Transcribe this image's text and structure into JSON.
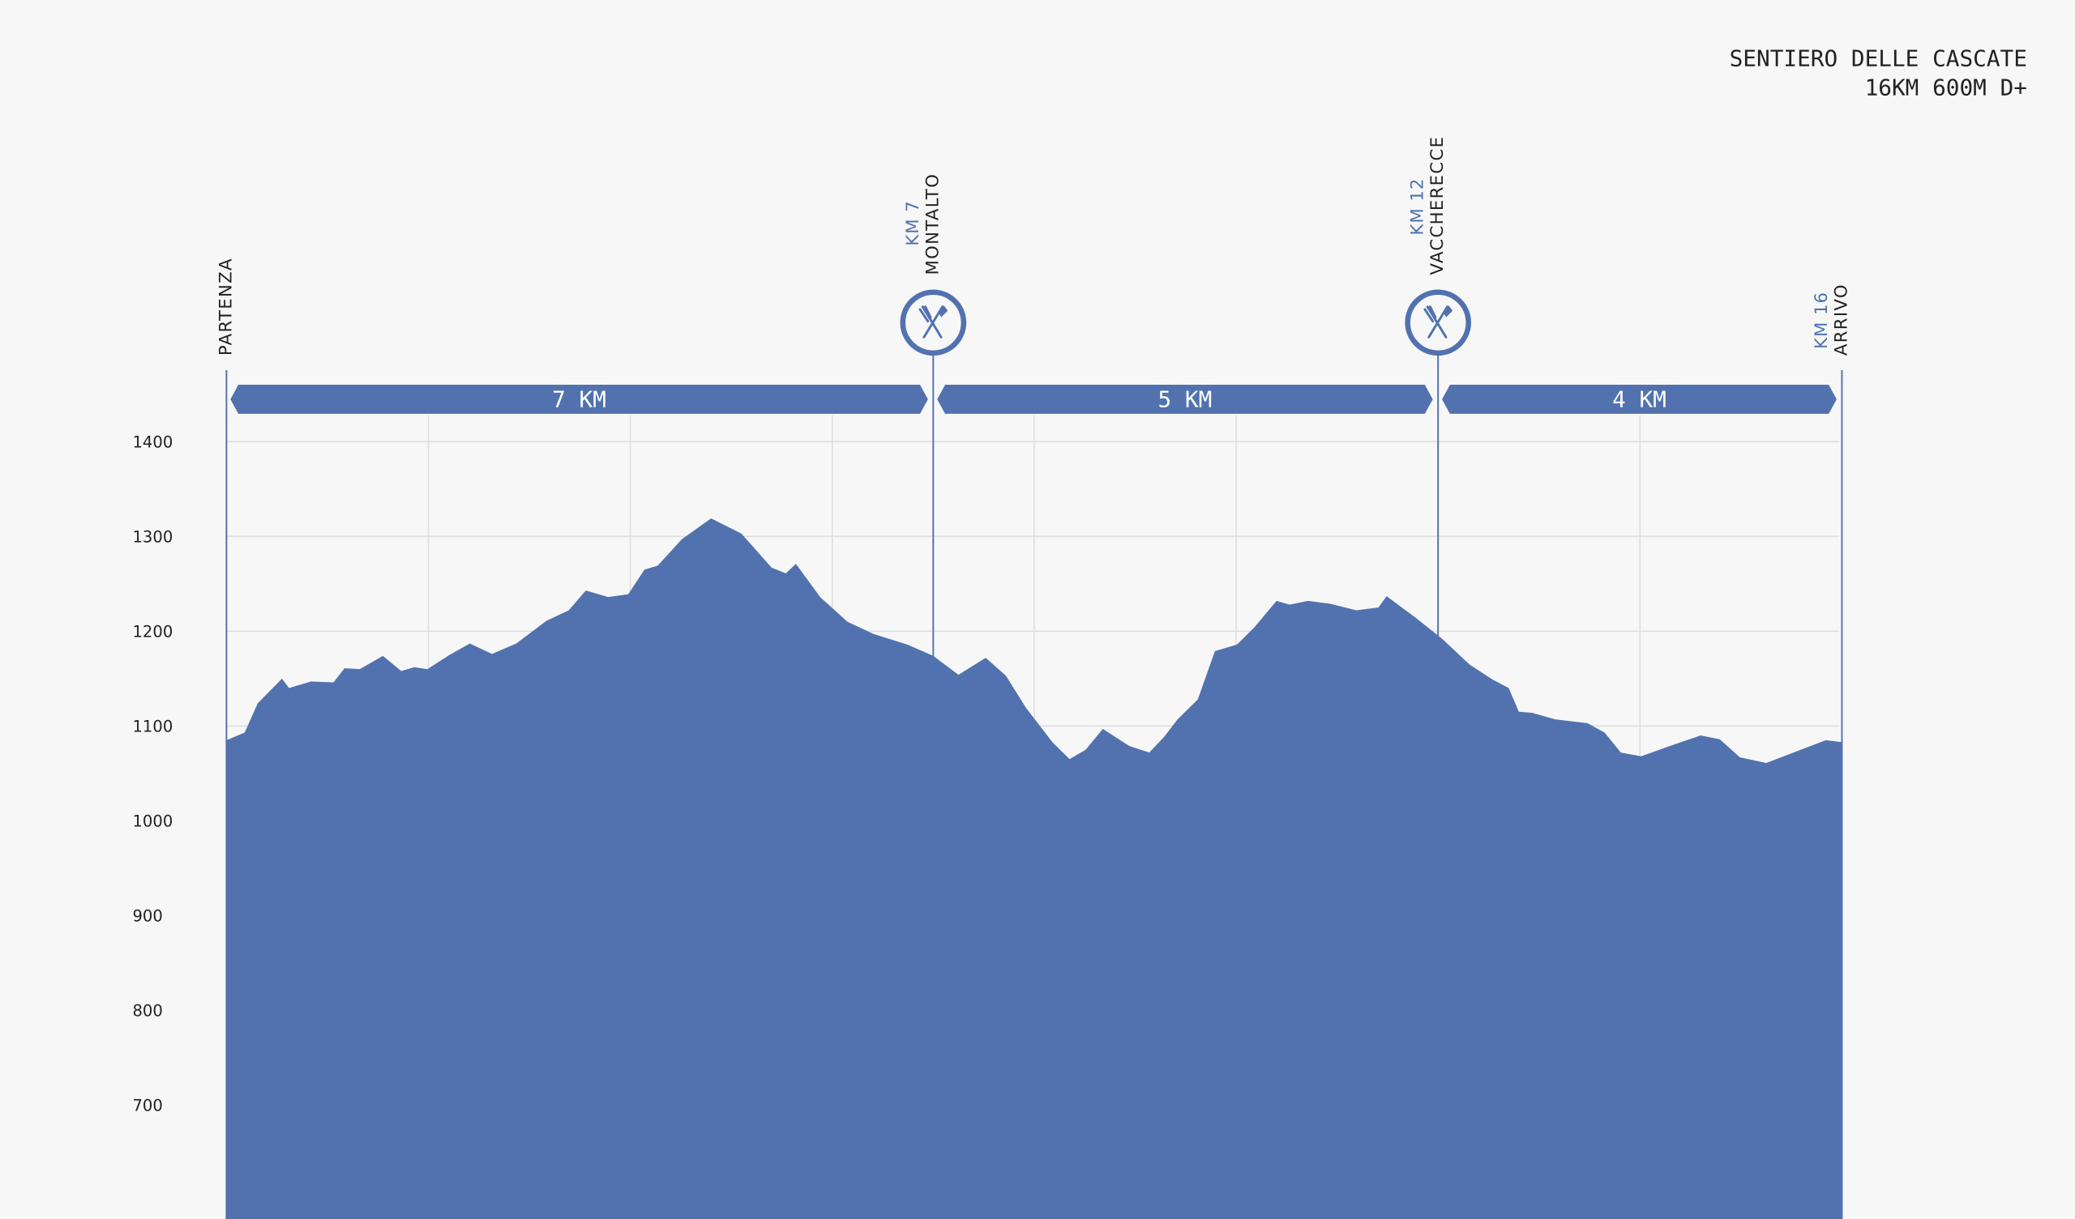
{
  "chart_data": {
    "type": "area",
    "title": "SENTIERO DELLE CASCATE",
    "subtitle": "16KM 600M D+",
    "color": "#5172ae",
    "xlim": [
      0,
      16
    ],
    "ylim": [
      580,
      1400
    ],
    "yticks": [
      700,
      800,
      900,
      1000,
      1100,
      1200,
      1300,
      1400
    ],
    "xticks": [
      2,
      4,
      6,
      8,
      10,
      12,
      14
    ],
    "grid": true,
    "x": [
      0,
      0.18,
      0.31,
      0.55,
      0.62,
      0.84,
      1.06,
      1.17,
      1.32,
      1.55,
      1.73,
      1.86,
      1.99,
      2.21,
      2.41,
      2.63,
      2.87,
      3.17,
      3.39,
      3.56,
      3.78,
      3.98,
      4.14,
      4.27,
      4.51,
      4.8,
      5.1,
      5.4,
      5.54,
      5.64,
      5.88,
      6.15,
      6.41,
      6.74,
      7.0,
      7.25,
      7.52,
      7.72,
      7.92,
      8.18,
      8.35,
      8.51,
      8.68,
      8.94,
      9.14,
      9.29,
      9.42,
      9.62,
      9.79,
      10.01,
      10.18,
      10.4,
      10.53,
      10.71,
      10.93,
      11.19,
      11.41,
      11.49,
      11.78,
      12.04,
      12.31,
      12.54,
      12.7,
      12.8,
      12.93,
      13.16,
      13.48,
      13.65,
      13.81,
      14.01,
      14.27,
      14.6,
      14.79,
      14.99,
      15.25,
      15.52,
      15.84,
      16
    ],
    "values": [
      1085,
      1093,
      1124,
      1150,
      1140,
      1147,
      1146,
      1161,
      1160,
      1174,
      1158,
      1162,
      1160,
      1175,
      1187,
      1176,
      1187,
      1211,
      1222,
      1243,
      1236,
      1239,
      1265,
      1269,
      1297,
      1319,
      1303,
      1267,
      1261,
      1271,
      1236,
      1210,
      1197,
      1186,
      1174,
      1154,
      1172,
      1153,
      1119,
      1083,
      1065,
      1075,
      1097,
      1079,
      1072,
      1089,
      1107,
      1128,
      1179,
      1186,
      1204,
      1232,
      1228,
      1232,
      1229,
      1222,
      1225,
      1237,
      1214,
      1192,
      1165,
      1149,
      1140,
      1115,
      1114,
      1107,
      1103,
      1093,
      1072,
      1068,
      1078,
      1090,
      1086,
      1067,
      1061,
      1072,
      1085,
      1083
    ],
    "waypoints": [
      {
        "name": "PARTENZA",
        "km": 0
      },
      {
        "name": "MONTALTO",
        "label": "KM 7",
        "km": 7,
        "refreshment": true
      },
      {
        "name": "VACCHERECCE",
        "label": "KM 12",
        "km": 12,
        "refreshment": true
      },
      {
        "name": "ARRIVO",
        "label": "KM 16",
        "km": 16
      }
    ],
    "segments": [
      "7 KM",
      "5 KM",
      "4 KM"
    ]
  }
}
